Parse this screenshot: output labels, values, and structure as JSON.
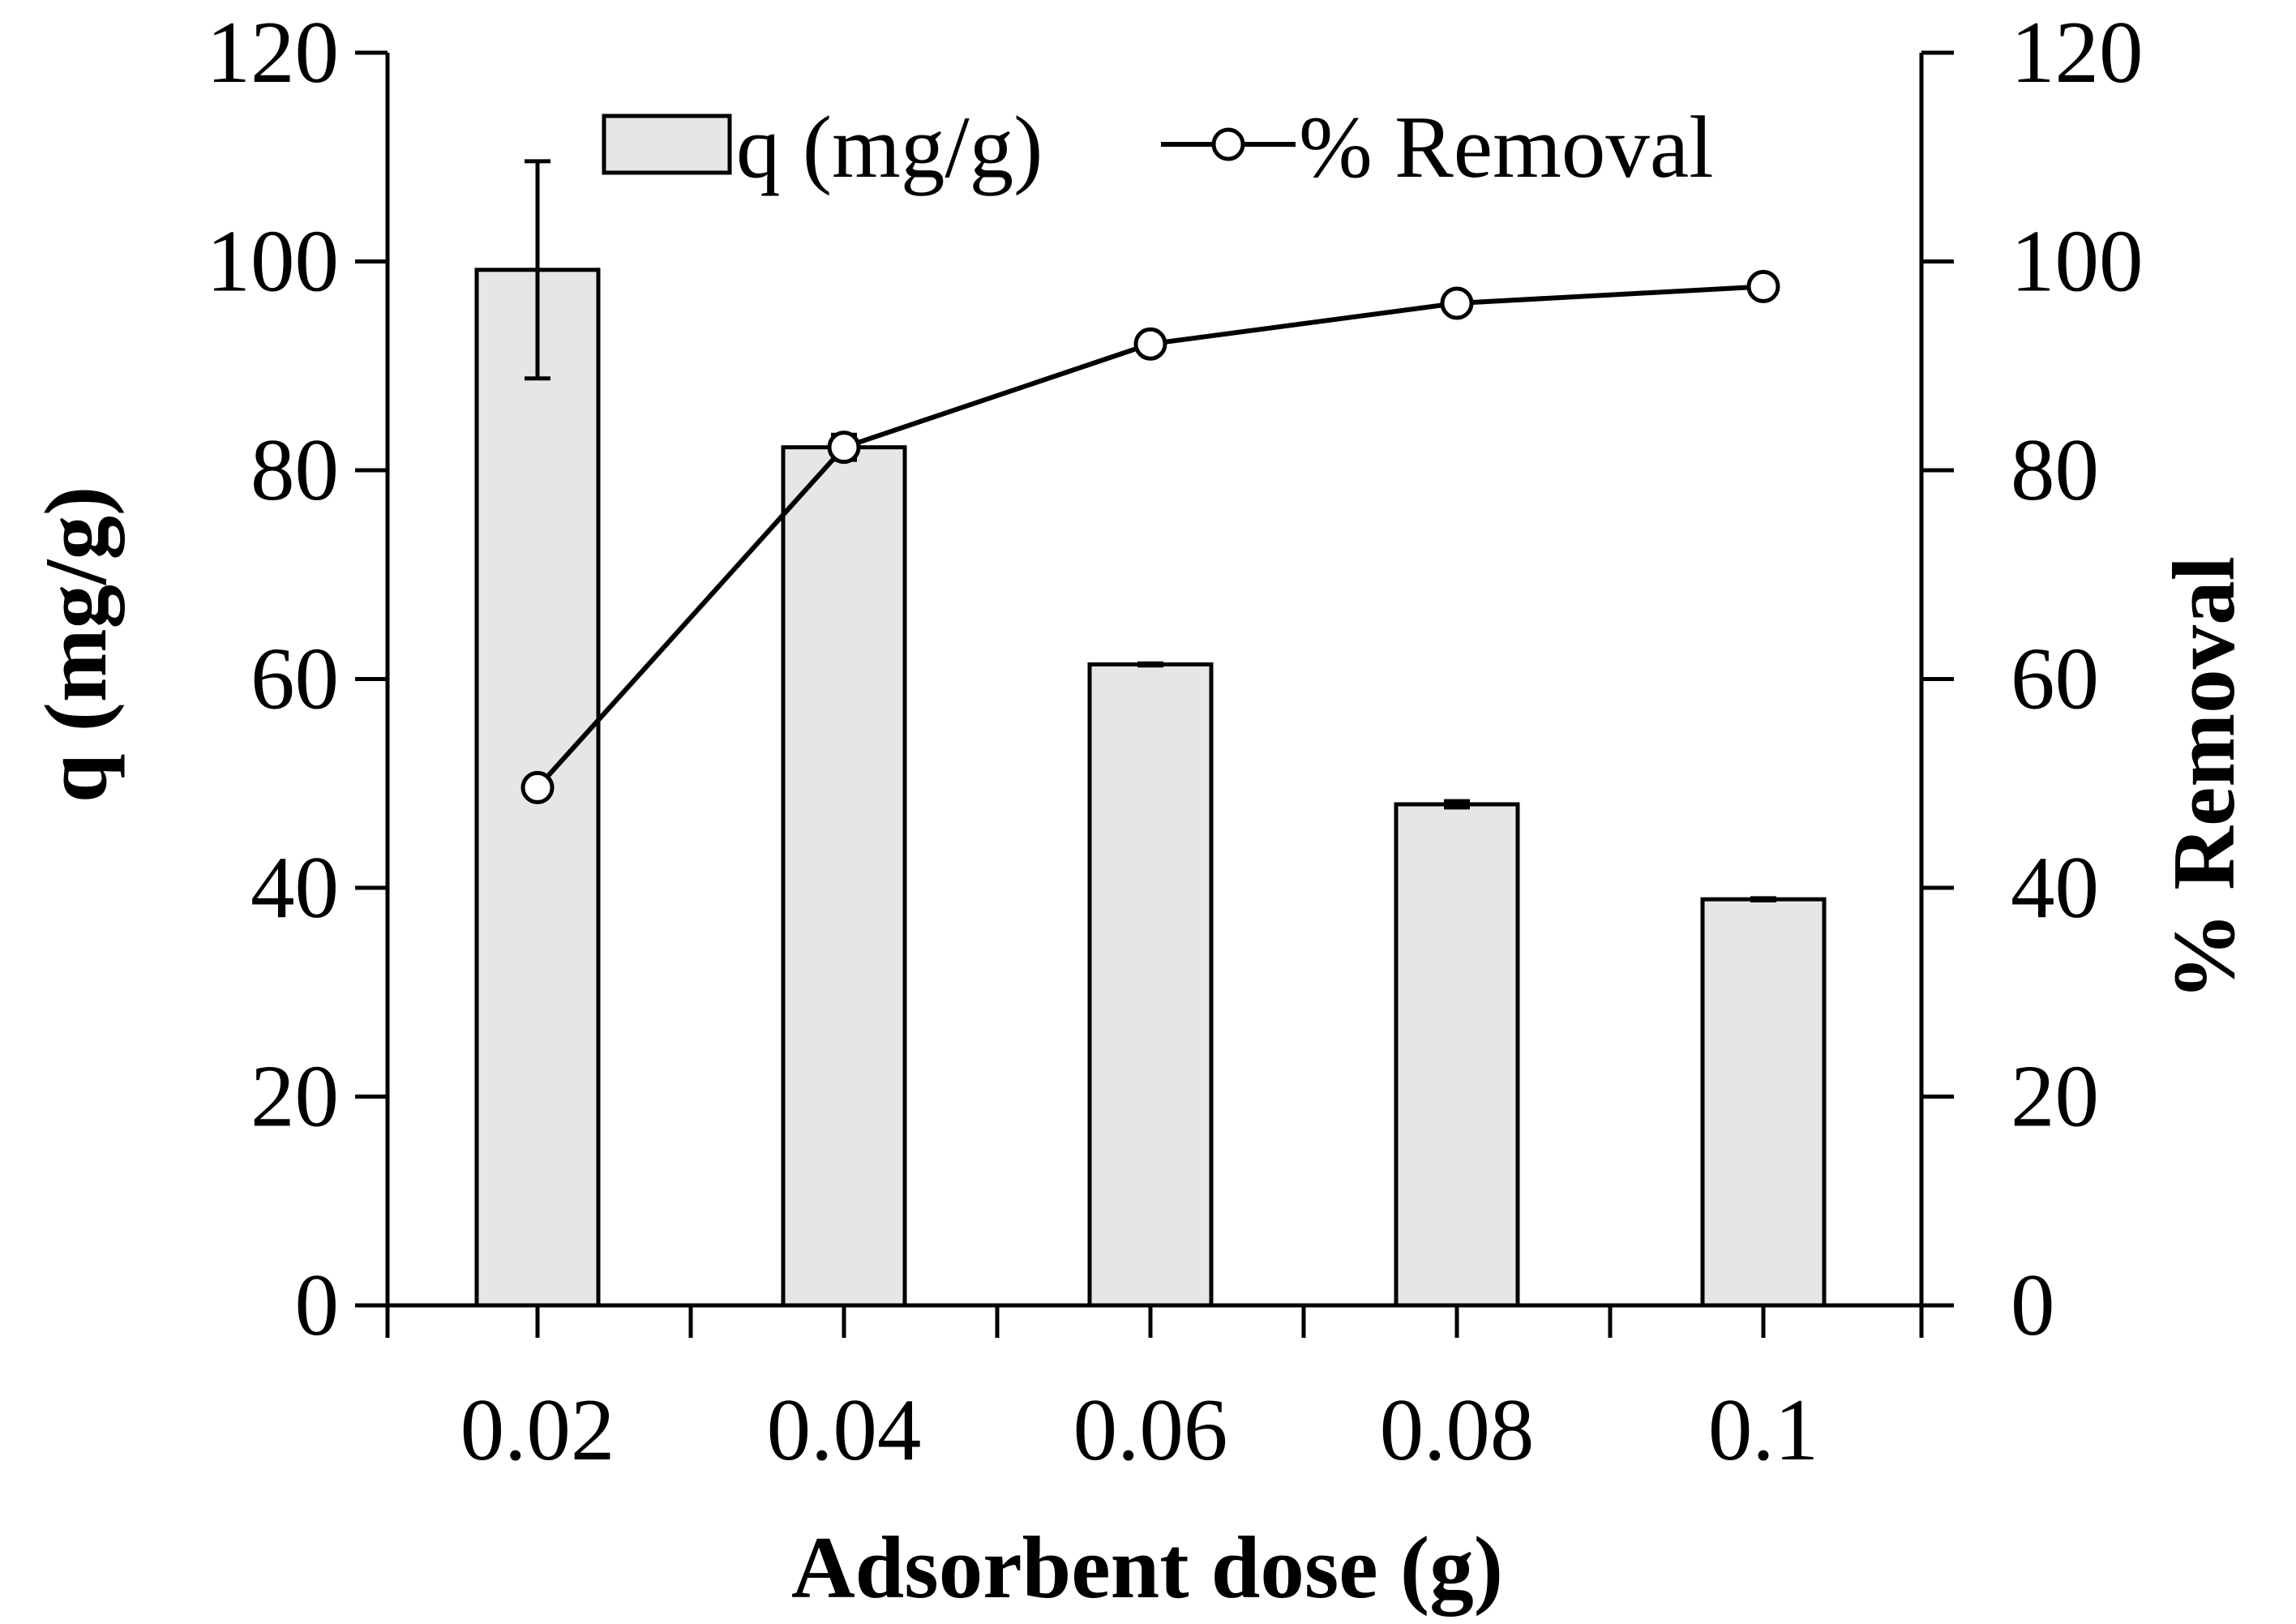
{
  "chart_data": {
    "type": "bar+line",
    "title": "",
    "xlabel": "Adsorbent dose (g)",
    "ylabel_left": "q (mg/g)",
    "ylabel_right": "% Removal",
    "categories": [
      "0.02",
      "0.04",
      "0.06",
      "0.08",
      "0.1"
    ],
    "ylim_left": [
      0,
      120
    ],
    "ylim_right": [
      0,
      120
    ],
    "yticks_left": [
      "0",
      "20",
      "40",
      "60",
      "80",
      "100",
      "120"
    ],
    "yticks_right": [
      "0",
      "20",
      "40",
      "60",
      "80",
      "100",
      "120"
    ],
    "grid": false,
    "legend_position": "top-center",
    "series": [
      {
        "name": "q (mg/g)",
        "kind": "bar",
        "axis": "left",
        "values": [
          99.2,
          82.2,
          61.4,
          48.0,
          38.9
        ],
        "errors": [
          10.4,
          0.6,
          0.1,
          0.3,
          0.1
        ],
        "color": "#e6e6e6"
      },
      {
        "name": "% Removal",
        "kind": "line",
        "axis": "right",
        "values": [
          49.6,
          82.2,
          92.1,
          96.0,
          97.6
        ],
        "errors": [
          0.3,
          1.2,
          0.3,
          0.2,
          0.1
        ],
        "color": "#000000"
      }
    ]
  }
}
